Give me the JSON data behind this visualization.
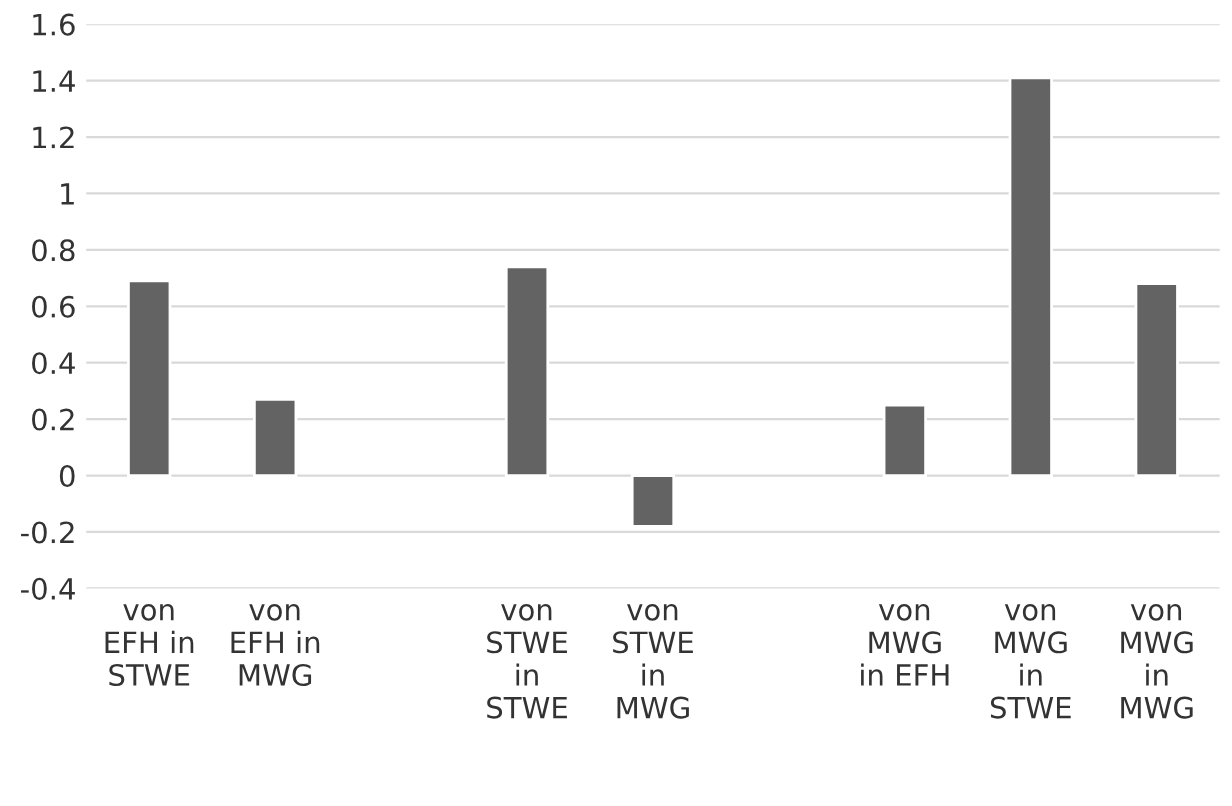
{
  "chart_data": {
    "type": "bar",
    "categories": [
      "von\nEFH in\nSTWE",
      "von\nEFH in\nMWG",
      null,
      "von\nSTWE\nin\nSTWE",
      "von\nSTWE\nin\nMWG",
      null,
      "von\nMWG\nin EFH",
      "von\nMWG\nin\nSTWE",
      "von\nMWG\nin\nMWG"
    ],
    "values": [
      0.69,
      0.27,
      null,
      0.74,
      -0.18,
      null,
      0.25,
      1.41,
      0.68
    ],
    "color": "#636363",
    "ylim": [
      -0.4,
      1.6
    ],
    "yticks": [
      {
        "value": -0.4,
        "label": "-0.4"
      },
      {
        "value": -0.2,
        "label": "-0.2"
      },
      0,
      0.2,
      0.4,
      0.6,
      0.8,
      1,
      1.2,
      1.4,
      1.6
    ],
    "grid": "y"
  }
}
